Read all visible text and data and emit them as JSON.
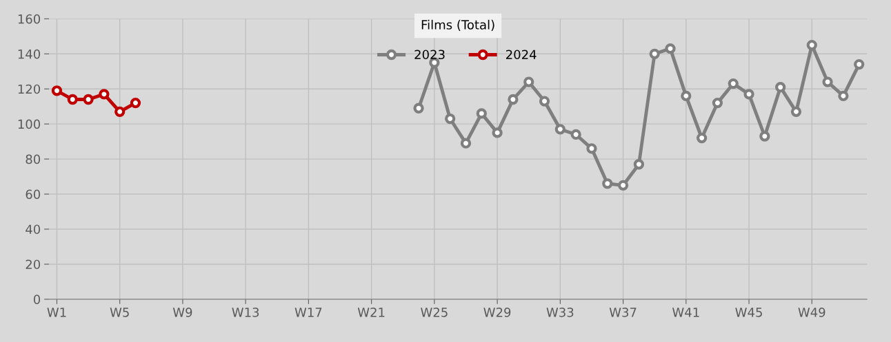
{
  "chart_data": {
    "type": "line",
    "title": "Films (Total)",
    "categories": [
      "W1",
      null,
      null,
      null,
      "W5",
      null,
      null,
      null,
      "W9",
      null,
      null,
      null,
      "W13",
      null,
      null,
      null,
      "W17",
      null,
      null,
      null,
      "W21",
      null,
      null,
      null,
      "W25",
      null,
      null,
      null,
      "W29",
      null,
      null,
      null,
      "W33",
      null,
      null,
      null,
      "W37",
      null,
      null,
      null,
      "W41",
      null,
      null,
      null,
      "W45",
      null,
      null,
      null,
      "W49",
      null,
      null,
      null
    ],
    "series": [
      {
        "name": "2023",
        "color": "#7f7f7f",
        "values": [
          null,
          null,
          null,
          null,
          null,
          null,
          null,
          null,
          null,
          null,
          null,
          null,
          null,
          null,
          null,
          null,
          null,
          null,
          null,
          null,
          null,
          null,
          null,
          109,
          135,
          103,
          89,
          106,
          95,
          114,
          124,
          113,
          97,
          94,
          86,
          66,
          65,
          77,
          140,
          143,
          116,
          92,
          112,
          123,
          117,
          93,
          121,
          107,
          145,
          124,
          116,
          134
        ]
      },
      {
        "name": "2024",
        "color": "#c00000",
        "values": [
          119,
          114,
          114,
          117,
          107,
          112,
          null,
          null,
          null,
          null,
          null,
          null,
          null,
          null,
          null,
          null,
          null,
          null,
          null,
          null,
          null,
          null,
          null,
          null,
          null,
          null,
          null,
          null,
          null,
          null,
          null,
          null,
          null,
          null,
          null,
          null,
          null,
          null,
          null,
          null,
          null,
          null,
          null,
          null,
          null,
          null,
          null,
          null,
          null,
          null,
          null,
          null
        ]
      }
    ],
    "ylim": [
      0,
      160
    ],
    "yticks": [
      0,
      20,
      40,
      60,
      80,
      100,
      120,
      140,
      160
    ],
    "grid": true,
    "legend": "top",
    "marker": "circle",
    "line_style": "solid"
  }
}
